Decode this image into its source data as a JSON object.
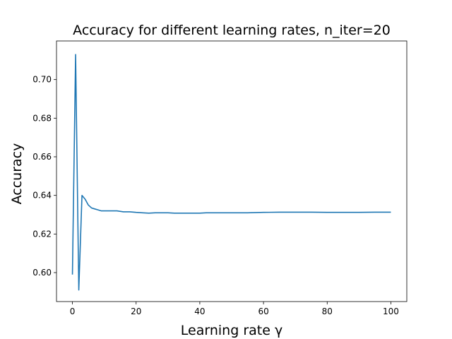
{
  "chart_data": {
    "type": "line",
    "title": "Accuracy for different learning rates, n_iter=20",
    "xlabel": "Learning rate γ",
    "ylabel": "Accuracy",
    "xlim": [
      -5,
      105
    ],
    "ylim": [
      0.585,
      0.72
    ],
    "xticks": [
      0,
      20,
      40,
      60,
      80,
      100
    ],
    "yticks": [
      0.6,
      0.62,
      0.64,
      0.66,
      0.68,
      0.7
    ],
    "ytick_labels": [
      "0.60",
      "0.62",
      "0.64",
      "0.66",
      "0.68",
      "0.70"
    ],
    "grid": false,
    "line_color": "#1f77b4",
    "series": [
      {
        "x": [
          0,
          1,
          2,
          3,
          4,
          5,
          6,
          7,
          8,
          9,
          10,
          12,
          14,
          16,
          18,
          20,
          22,
          24,
          26,
          28,
          30,
          32,
          34,
          36,
          38,
          40,
          42,
          44,
          46,
          48,
          50,
          55,
          60,
          65,
          70,
          75,
          80,
          85,
          90,
          95,
          100
        ],
        "y": [
          0.599,
          0.713,
          0.591,
          0.64,
          0.638,
          0.635,
          0.6335,
          0.633,
          0.6325,
          0.632,
          0.632,
          0.632,
          0.632,
          0.6315,
          0.6315,
          0.6312,
          0.631,
          0.6308,
          0.631,
          0.631,
          0.631,
          0.6308,
          0.6308,
          0.6308,
          0.6308,
          0.6308,
          0.631,
          0.631,
          0.631,
          0.631,
          0.631,
          0.631,
          0.6312,
          0.6313,
          0.6313,
          0.6313,
          0.6312,
          0.6312,
          0.6312,
          0.6313,
          0.6313
        ]
      }
    ]
  }
}
